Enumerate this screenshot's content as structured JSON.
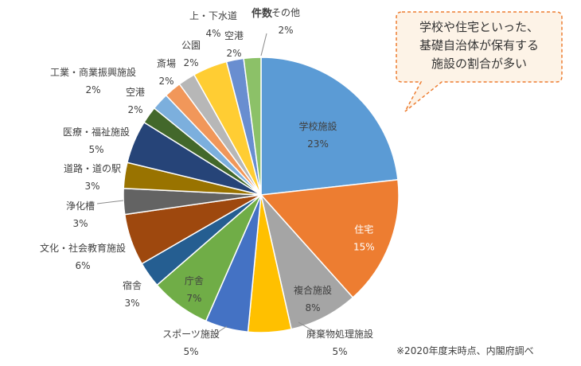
{
  "chart_data": {
    "type": "pie",
    "title": "件数",
    "slices": [
      {
        "label": "学校施設",
        "value": 23,
        "value_label": "23%",
        "color": "#5b9bd5"
      },
      {
        "label": "住宅",
        "value": 15,
        "value_label": "15%",
        "color": "#ed7d31"
      },
      {
        "label": "複合施設",
        "value": 8,
        "value_label": "8%",
        "color": "#a5a5a5"
      },
      {
        "label": "廃棄物処理施設",
        "value": 5,
        "value_label": "5%",
        "color": "#ffc000"
      },
      {
        "label": "スポーツ施設",
        "value": 5,
        "value_label": "5%",
        "color": "#4472c4"
      },
      {
        "label": "庁舎",
        "value": 7,
        "value_label": "7%",
        "color": "#70ad47"
      },
      {
        "label": "宿舎",
        "value": 3,
        "value_label": "3%",
        "color": "#255e91"
      },
      {
        "label": "文化・社会教育施設",
        "value": 6,
        "value_label": "6%",
        "color": "#9e480e"
      },
      {
        "label": "浄化槽",
        "value": 3,
        "value_label": "3%",
        "color": "#636363"
      },
      {
        "label": "道路・道の駅",
        "value": 3,
        "value_label": "3%",
        "color": "#997300"
      },
      {
        "label": "医療・福祉施設",
        "value": 5,
        "value_label": "5%",
        "color": "#264478"
      },
      {
        "label": "空港",
        "value": 2,
        "value_label": "2%",
        "color": "#43682b"
      },
      {
        "label": "工業・商業振興施設",
        "value": 2,
        "value_label": "2%",
        "color": "#7cafdd"
      },
      {
        "label": "斎場",
        "value": 2,
        "value_label": "2%",
        "color": "#f1975a"
      },
      {
        "label": "公園",
        "value": 2,
        "value_label": "2%",
        "color": "#b7b7b7"
      },
      {
        "label": "上・下水道",
        "value": 4,
        "value_label": "4%",
        "color": "#ffcd33"
      },
      {
        "label": "空港",
        "value": 2,
        "value_label": "2%",
        "color": "#698ed0"
      },
      {
        "label": "その他",
        "value": 2,
        "value_label": "2%",
        "color": "#8cc168"
      }
    ]
  },
  "callout": {
    "line1": "学校や住宅といった、",
    "line2": "基礎自治体が保有する",
    "line3": "施設の割合が多い"
  },
  "footnote": "※2020年度末時点、内閣府調べ"
}
